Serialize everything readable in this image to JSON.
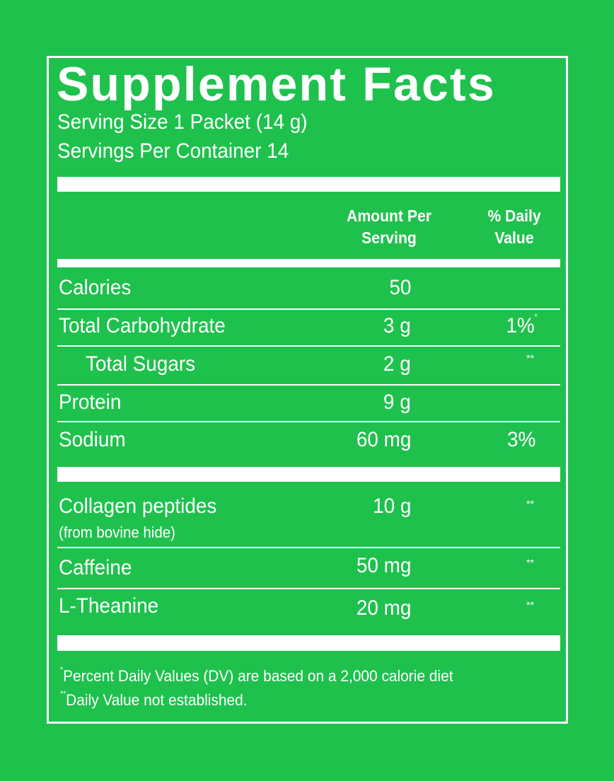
{
  "label": {
    "title": "Supplement Facts",
    "serving_size": "Serving Size 1 Packet (14 g)",
    "servings_per_container": "Servings Per Container 14",
    "header": {
      "amount_line1": "Amount Per",
      "amount_line2": "Serving",
      "dv_line1": "% Daily",
      "dv_line2": "Value"
    },
    "nutrients": [
      {
        "name": "Calories",
        "amount": "50",
        "dv": ""
      },
      {
        "name": "Total Carbohydrate",
        "amount": "3 g",
        "dv": "1%",
        "dv_mark": "*"
      },
      {
        "name": "Total Sugars",
        "amount": "2 g",
        "dv": "",
        "dv_mark": "**"
      },
      {
        "name": "Protein",
        "amount": "9 g",
        "dv": ""
      },
      {
        "name": "Sodium",
        "amount": "60 mg",
        "dv": "3%"
      }
    ],
    "other": [
      {
        "name": "Collagen peptides",
        "note": "(from bovine hide)",
        "amount": "10 g",
        "dv_mark": "**"
      },
      {
        "name": "Caffeine",
        "amount": "50 mg",
        "dv_mark": "**"
      },
      {
        "name": "L-Theanine",
        "amount": "20 mg",
        "dv_mark": "**"
      }
    ],
    "footnotes": [
      {
        "mark": "*",
        "text": "Percent Daily Values (DV) are based on a 2,000 calorie diet"
      },
      {
        "mark": "**",
        "text": "Daily Value not established."
      }
    ]
  },
  "colors": {
    "background": "#1fc14d",
    "foreground": "#ffffff"
  }
}
